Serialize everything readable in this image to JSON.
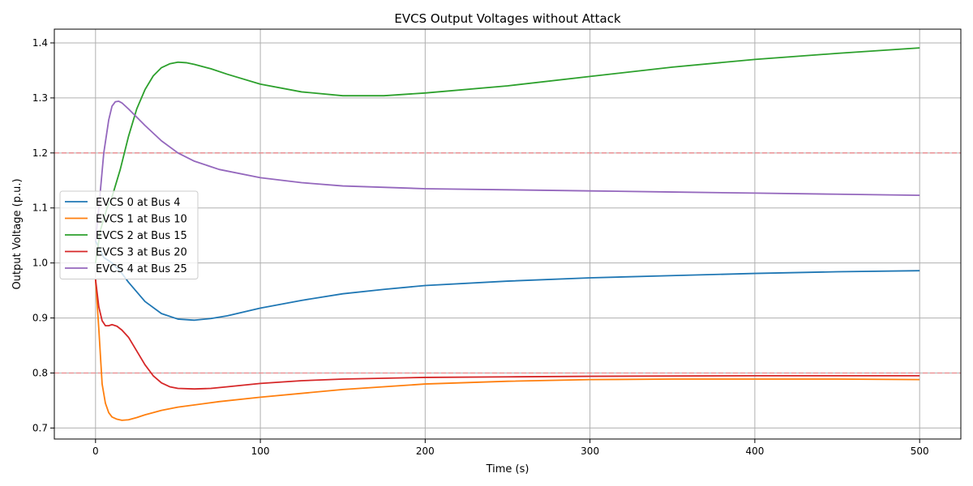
{
  "chart_data": {
    "type": "line",
    "title": "EVCS Output Voltages without Attack",
    "xlabel": "Time (s)",
    "ylabel": "Output Voltage (p.u.)",
    "xlim": [
      -25,
      525
    ],
    "ylim": [
      0.68,
      1.425
    ],
    "xticks": [
      0,
      100,
      200,
      300,
      400,
      500
    ],
    "yticks": [
      0.7,
      0.8,
      0.9,
      1.0,
      1.1,
      1.2,
      1.3,
      1.4
    ],
    "xtick_labels": [
      "0",
      "100",
      "200",
      "300",
      "400",
      "500"
    ],
    "ytick_labels": [
      "0.7",
      "0.8",
      "0.9",
      "1.0",
      "1.1",
      "1.2",
      "1.3",
      "1.4"
    ],
    "grid": true,
    "legend_position": "center-left",
    "reference_lines": [
      {
        "y": 1.2,
        "color": "#e8868a",
        "style": "dashed"
      },
      {
        "y": 0.8,
        "color": "#e8868a",
        "style": "dashed"
      }
    ],
    "series": [
      {
        "name": "EVCS 0 at Bus 4",
        "color": "#1f77b4",
        "points": [
          [
            0,
            1.04
          ],
          [
            5,
            1.01
          ],
          [
            10,
            1.0
          ],
          [
            15,
            0.985
          ],
          [
            20,
            0.965
          ],
          [
            30,
            0.93
          ],
          [
            40,
            0.908
          ],
          [
            50,
            0.898
          ],
          [
            60,
            0.896
          ],
          [
            70,
            0.899
          ],
          [
            80,
            0.904
          ],
          [
            100,
            0.918
          ],
          [
            125,
            0.932
          ],
          [
            150,
            0.944
          ],
          [
            175,
            0.952
          ],
          [
            200,
            0.959
          ],
          [
            250,
            0.967
          ],
          [
            300,
            0.973
          ],
          [
            350,
            0.977
          ],
          [
            400,
            0.981
          ],
          [
            450,
            0.984
          ],
          [
            500,
            0.986
          ]
        ]
      },
      {
        "name": "EVCS 1 at Bus 10",
        "color": "#ff7f0e",
        "points": [
          [
            0,
            0.97
          ],
          [
            2,
            0.88
          ],
          [
            4,
            0.78
          ],
          [
            6,
            0.745
          ],
          [
            8,
            0.728
          ],
          [
            10,
            0.72
          ],
          [
            13,
            0.716
          ],
          [
            16,
            0.714
          ],
          [
            20,
            0.715
          ],
          [
            25,
            0.719
          ],
          [
            30,
            0.724
          ],
          [
            40,
            0.732
          ],
          [
            50,
            0.738
          ],
          [
            75,
            0.748
          ],
          [
            100,
            0.756
          ],
          [
            150,
            0.77
          ],
          [
            200,
            0.78
          ],
          [
            250,
            0.785
          ],
          [
            300,
            0.788
          ],
          [
            350,
            0.789
          ],
          [
            400,
            0.789
          ],
          [
            450,
            0.789
          ],
          [
            500,
            0.788
          ]
        ]
      },
      {
        "name": "EVCS 2 at Bus 15",
        "color": "#2ca02c",
        "points": [
          [
            0,
            1.0
          ],
          [
            3,
            1.06
          ],
          [
            7,
            1.1
          ],
          [
            10,
            1.12
          ],
          [
            15,
            1.17
          ],
          [
            20,
            1.23
          ],
          [
            25,
            1.28
          ],
          [
            30,
            1.315
          ],
          [
            35,
            1.34
          ],
          [
            40,
            1.355
          ],
          [
            45,
            1.362
          ],
          [
            50,
            1.365
          ],
          [
            55,
            1.364
          ],
          [
            60,
            1.361
          ],
          [
            70,
            1.353
          ],
          [
            80,
            1.343
          ],
          [
            100,
            1.325
          ],
          [
            125,
            1.311
          ],
          [
            150,
            1.304
          ],
          [
            175,
            1.304
          ],
          [
            200,
            1.309
          ],
          [
            250,
            1.322
          ],
          [
            300,
            1.339
          ],
          [
            350,
            1.356
          ],
          [
            400,
            1.37
          ],
          [
            450,
            1.381
          ],
          [
            500,
            1.391
          ]
        ]
      },
      {
        "name": "EVCS 3 at Bus 20",
        "color": "#d62728",
        "points": [
          [
            0,
            0.97
          ],
          [
            2,
            0.92
          ],
          [
            4,
            0.895
          ],
          [
            6,
            0.886
          ],
          [
            8,
            0.886
          ],
          [
            10,
            0.888
          ],
          [
            13,
            0.885
          ],
          [
            16,
            0.878
          ],
          [
            20,
            0.865
          ],
          [
            25,
            0.84
          ],
          [
            30,
            0.815
          ],
          [
            35,
            0.795
          ],
          [
            40,
            0.782
          ],
          [
            45,
            0.775
          ],
          [
            50,
            0.772
          ],
          [
            60,
            0.771
          ],
          [
            70,
            0.772
          ],
          [
            80,
            0.775
          ],
          [
            100,
            0.781
          ],
          [
            125,
            0.786
          ],
          [
            150,
            0.789
          ],
          [
            200,
            0.792
          ],
          [
            250,
            0.793
          ],
          [
            300,
            0.794
          ],
          [
            400,
            0.795
          ],
          [
            500,
            0.795
          ]
        ]
      },
      {
        "name": "EVCS 4 at Bus 25",
        "color": "#9467bd",
        "points": [
          [
            0,
            1.04
          ],
          [
            2,
            1.1
          ],
          [
            5,
            1.2
          ],
          [
            8,
            1.26
          ],
          [
            10,
            1.285
          ],
          [
            12,
            1.293
          ],
          [
            14,
            1.294
          ],
          [
            16,
            1.291
          ],
          [
            20,
            1.28
          ],
          [
            25,
            1.265
          ],
          [
            30,
            1.25
          ],
          [
            40,
            1.222
          ],
          [
            50,
            1.2
          ],
          [
            60,
            1.185
          ],
          [
            75,
            1.17
          ],
          [
            100,
            1.155
          ],
          [
            125,
            1.146
          ],
          [
            150,
            1.14
          ],
          [
            200,
            1.135
          ],
          [
            250,
            1.133
          ],
          [
            300,
            1.131
          ],
          [
            350,
            1.129
          ],
          [
            400,
            1.127
          ],
          [
            450,
            1.125
          ],
          [
            500,
            1.123
          ]
        ]
      }
    ]
  }
}
